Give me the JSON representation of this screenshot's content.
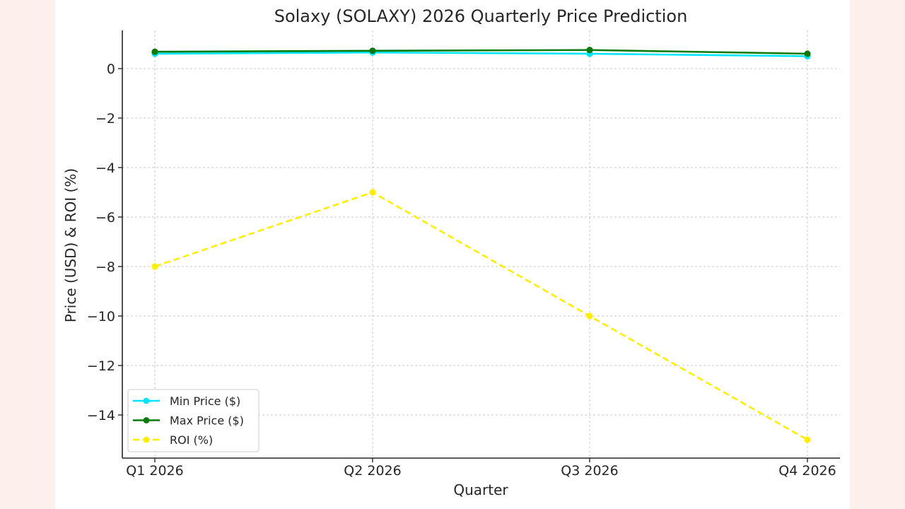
{
  "chart_data": {
    "type": "line",
    "title": "Solaxy (SOLAXY) 2026 Quarterly Price Prediction",
    "xlabel": "Quarter",
    "ylabel": "Price (USD) & ROI (%)",
    "categories": [
      "Q1 2026",
      "Q2 2026",
      "Q3 2026",
      "Q4 2026"
    ],
    "ylim": [
      -15.8,
      1.55
    ],
    "yticks": [
      0,
      -2,
      -4,
      -6,
      -8,
      -10,
      -12,
      -14
    ],
    "ytick_labels": [
      "0",
      "−2",
      "−4",
      "−6",
      "−8",
      "−10",
      "−12",
      "−14"
    ],
    "grid": true,
    "legend_position": "lower-left",
    "series": [
      {
        "name": "Min Price ($)",
        "values": [
          0.6,
          0.65,
          0.6,
          0.5
        ],
        "color": "#00e5ff",
        "dashed": false
      },
      {
        "name": "Max Price ($)",
        "values": [
          0.68,
          0.72,
          0.75,
          0.6
        ],
        "color": "#0a7a0a",
        "dashed": false
      },
      {
        "name": "ROI (%)",
        "values": [
          -8,
          -5,
          -10,
          -15
        ],
        "color": "#ffee00",
        "dashed": true
      }
    ]
  }
}
